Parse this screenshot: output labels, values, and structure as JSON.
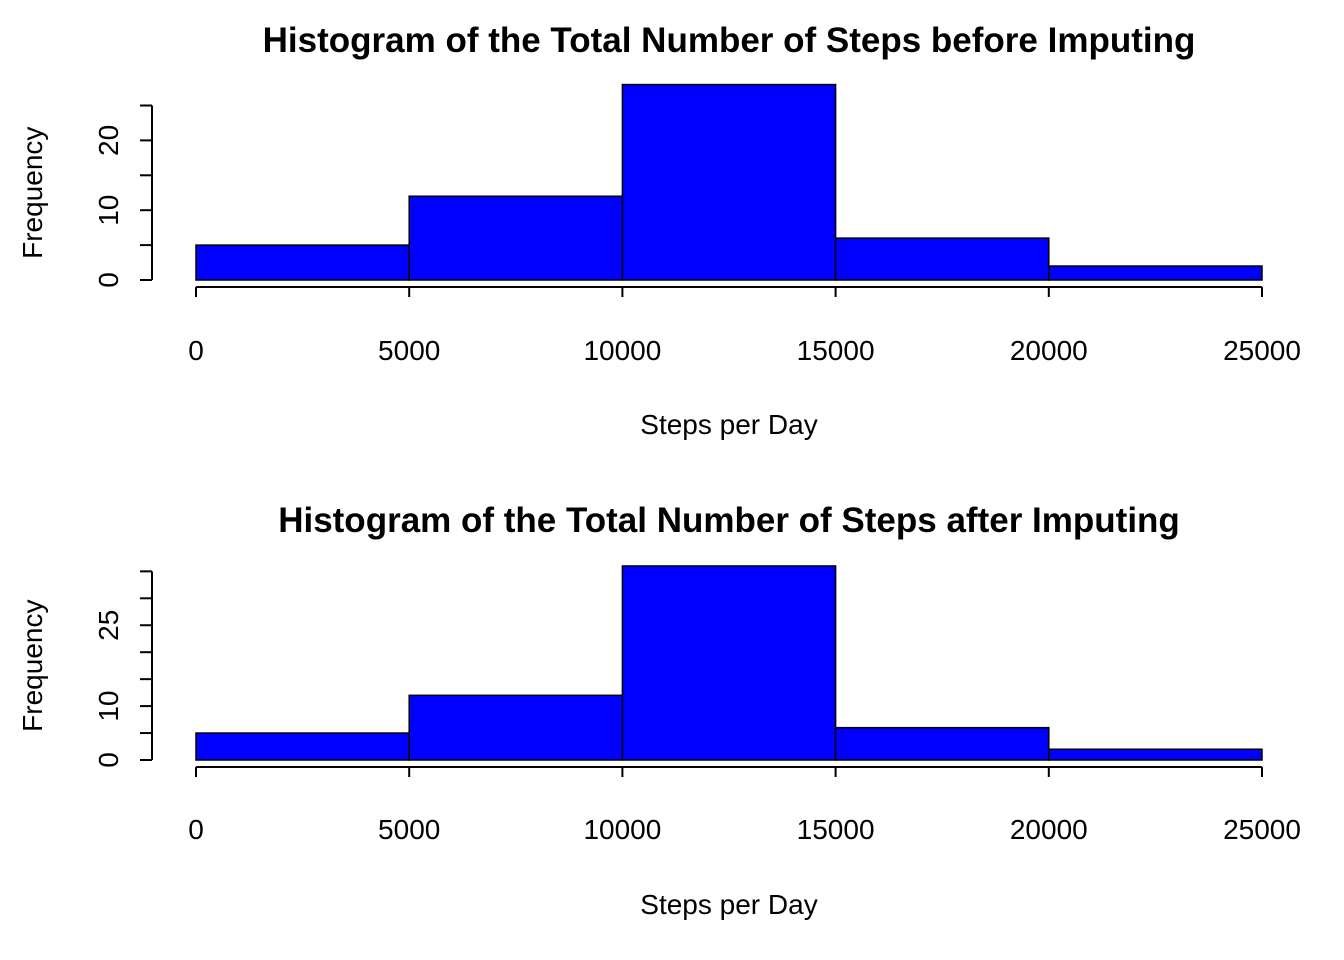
{
  "chart_data": [
    {
      "type": "bar",
      "title": "Histogram of the Total Number of Steps before Imputing",
      "xlabel": "Steps per Day",
      "ylabel": "Frequency",
      "bins": [
        [
          0,
          5000
        ],
        [
          5000,
          10000
        ],
        [
          10000,
          15000
        ],
        [
          15000,
          20000
        ],
        [
          20000,
          25000
        ]
      ],
      "values": [
        5,
        12,
        28,
        6,
        2
      ],
      "xlim": [
        0,
        25000
      ],
      "ylim": [
        0,
        28
      ],
      "x_ticks": [
        0,
        5000,
        10000,
        15000,
        20000,
        25000
      ],
      "x_tick_labels": [
        "0",
        "5000",
        "10000",
        "15000",
        "20000",
        "25000"
      ],
      "y_ticks": [
        0,
        5,
        10,
        15,
        20,
        25
      ],
      "y_tick_labels": [
        "0",
        "",
        "10",
        "",
        "20",
        ""
      ],
      "bar_color": "#0000FF",
      "grid": false
    },
    {
      "type": "bar",
      "title": "Histogram of the Total Number of Steps after Imputing",
      "xlabel": "Steps per Day",
      "ylabel": "Frequency",
      "bins": [
        [
          0,
          5000
        ],
        [
          5000,
          10000
        ],
        [
          10000,
          15000
        ],
        [
          15000,
          20000
        ],
        [
          20000,
          25000
        ]
      ],
      "values": [
        5,
        12,
        36,
        6,
        2
      ],
      "xlim": [
        0,
        25000
      ],
      "ylim": [
        0,
        36
      ],
      "x_ticks": [
        0,
        5000,
        10000,
        15000,
        20000,
        25000
      ],
      "x_tick_labels": [
        "0",
        "5000",
        "10000",
        "15000",
        "20000",
        "25000"
      ],
      "y_ticks": [
        0,
        5,
        10,
        15,
        20,
        25,
        30,
        35
      ],
      "y_tick_labels": [
        "0",
        "",
        "10",
        "",
        "",
        "25",
        "",
        ""
      ],
      "bar_color": "#0000FF",
      "grid": false
    }
  ]
}
